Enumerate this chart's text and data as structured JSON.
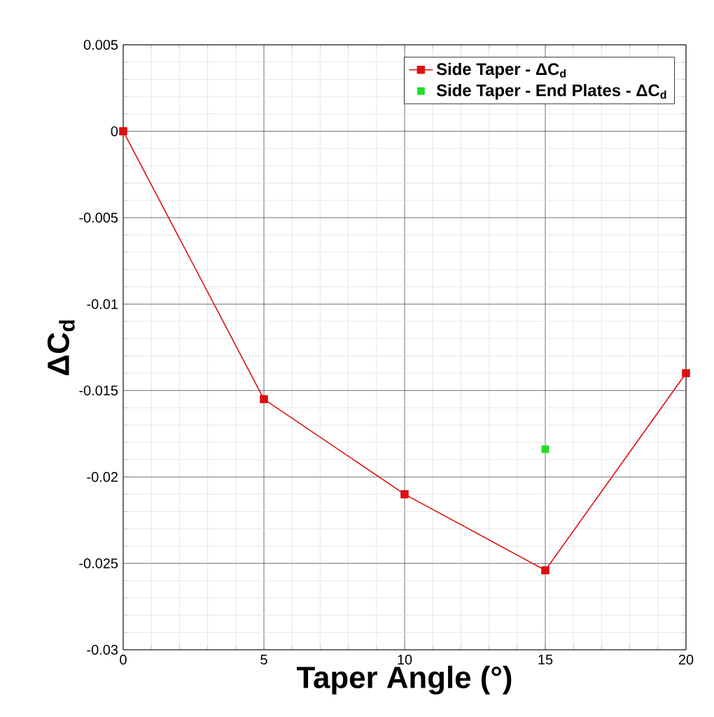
{
  "chart_data": {
    "type": "line",
    "xlabel": "Taper Angle (°)",
    "ylabel": "ΔC$_{d}$",
    "x": [
      0,
      5,
      10,
      15,
      20
    ],
    "series": [
      {
        "name": "Side Taper - ΔC$_{d}$",
        "color": "#dd1111",
        "values": [
          0,
          -0.0155,
          -0.021,
          -0.0254,
          -0.014
        ],
        "marker": "square"
      },
      {
        "name": "Side Taper - End Plates - ΔC$_{d}$",
        "type": "scatter",
        "color": "#22dd22",
        "x": [
          15
        ],
        "values": [
          -0.0184
        ],
        "marker": "square"
      }
    ],
    "xlim": [
      0,
      20
    ],
    "ylim": [
      -0.03,
      0.005
    ],
    "xticks": [
      0,
      5,
      10,
      15,
      20
    ],
    "yticks": [
      -0.03,
      -0.025,
      -0.02,
      -0.015,
      -0.01,
      -0.005,
      0,
      0.005
    ],
    "grid": true,
    "legend": "top right",
    "line_style": "solid"
  }
}
